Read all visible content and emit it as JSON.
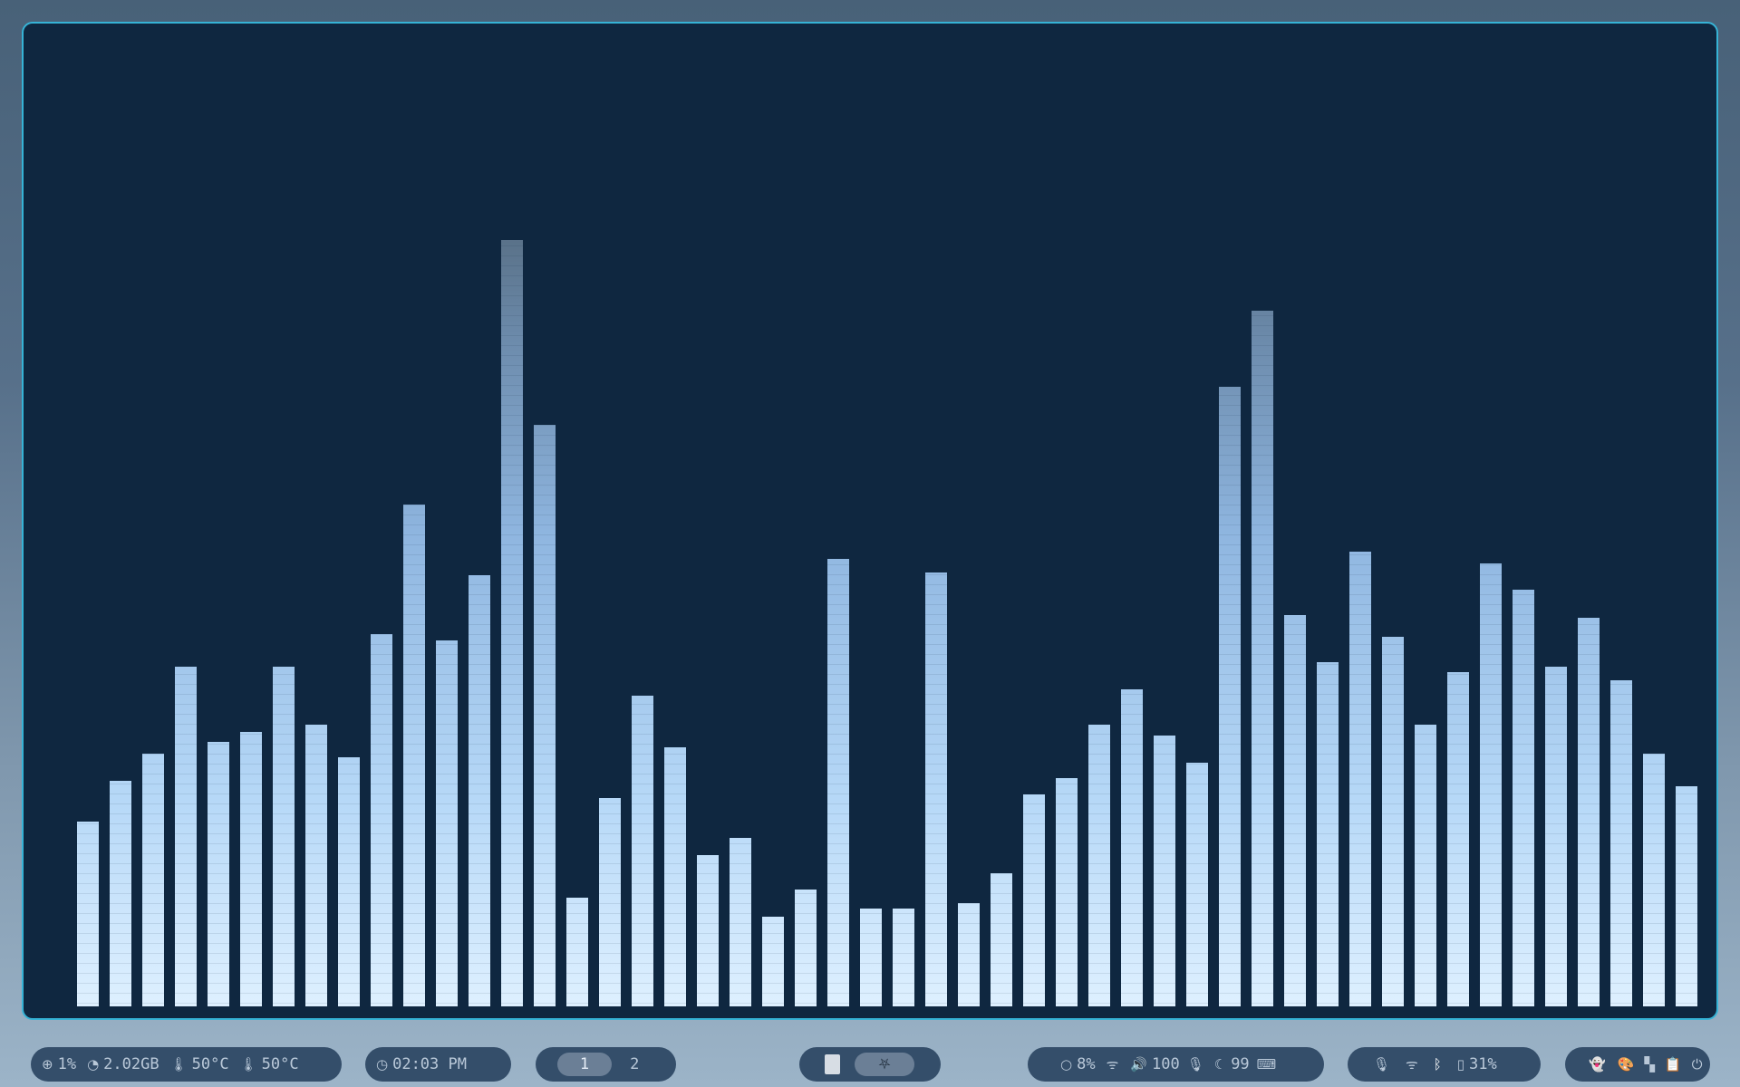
{
  "visualizer": {
    "values": [
      0.24,
      0.293,
      0.328,
      0.441,
      0.343,
      0.356,
      0.441,
      0.366,
      0.324,
      0.483,
      0.652,
      0.475,
      0.56,
      0.995,
      0.755,
      0.141,
      0.271,
      0.403,
      0.336,
      0.197,
      0.219,
      0.116,
      0.152,
      0.581,
      0.127,
      0.127,
      0.564,
      0.134,
      0.173,
      0.275,
      0.296,
      0.366,
      0.412,
      0.352,
      0.317,
      0.805,
      0.903,
      0.508,
      0.447,
      0.591,
      0.48,
      0.366,
      0.434,
      0.575,
      0.541,
      0.441,
      0.505,
      0.423,
      0.328,
      0.286
    ]
  },
  "bar": {
    "system": {
      "cpu_icon": "cpu-icon",
      "cpu": "1%",
      "memory_icon": "memory-gauge-icon",
      "memory": "2.02GB",
      "temp1_icon": "thermometer-icon",
      "temp1": "50°C",
      "temp2_icon": "thermometer-icon",
      "temp2": "50°C"
    },
    "clock": {
      "icon": "clock-icon",
      "time": "02:03 PM"
    },
    "workspaces": [
      "1",
      "2"
    ],
    "active_workspace": "1",
    "taskbar": {
      "apps": [
        "document-icon",
        "app-logo-icon"
      ]
    },
    "status": {
      "brightness_icon": "brightness-icon",
      "brightness": "8%",
      "wifi_icon": "wifi-icon",
      "volume_icon": "volume-icon",
      "volume": "100",
      "mic_icon": "microphone-icon",
      "night_icon": "moon-icon",
      "night": "99",
      "keyboard_icon": "keyboard-icon"
    },
    "tray": {
      "mic_icon": "microphone-icon",
      "wifi_icon": "wifi-icon",
      "bluetooth_icon": "bluetooth-icon",
      "battery_icon": "battery-icon",
      "battery": "31%"
    },
    "actions": [
      "ghost-icon",
      "palette-icon",
      "checkerboard-icon",
      "clipboard-icon",
      "power-icon"
    ],
    "colors": {
      "bar_bg": "#344e6a",
      "window_border": "#36b3d6",
      "window_bg": "#0f2740",
      "viz_light": "#def0ff",
      "viz_dark": "#597188"
    }
  }
}
